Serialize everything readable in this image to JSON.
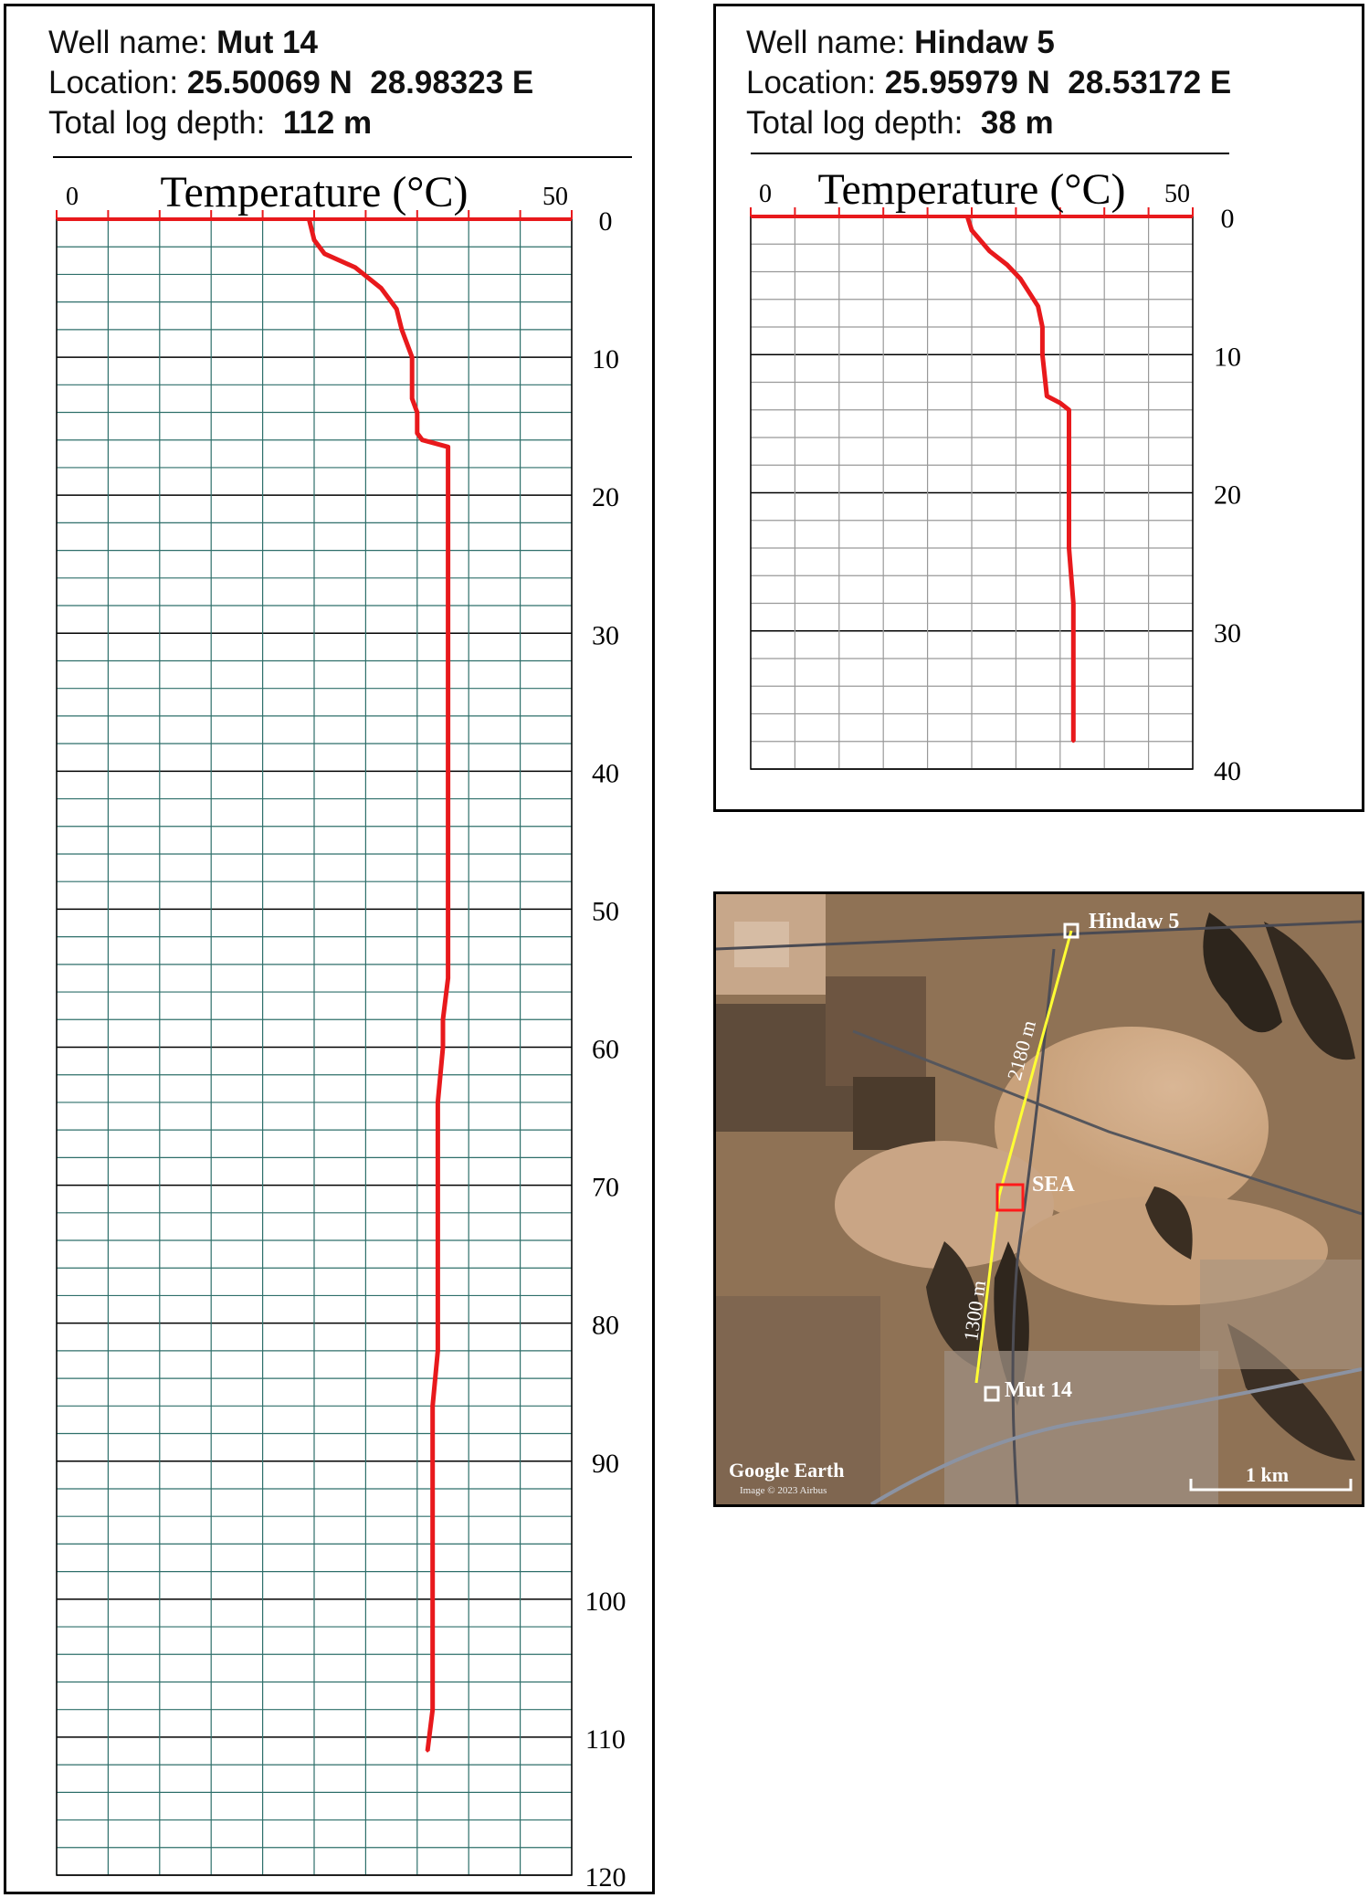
{
  "chart_data": [
    {
      "type": "line",
      "well_label": "Well name:",
      "well_name": "Mut 14",
      "location_label": "Location:",
      "location": "25.50069 N  28.98323 E",
      "depth_label": "Total log depth:",
      "total_depth": "112 m",
      "axis_title": "Temperature (°C)",
      "x_ticks": [
        "0",
        "50"
      ],
      "xlim": [
        0,
        50
      ],
      "y_ticks": [
        "0",
        "10",
        "20",
        "30",
        "40",
        "50",
        "60",
        "70",
        "80",
        "90",
        "100",
        "110",
        "120"
      ],
      "ylim": [
        0,
        120
      ],
      "grid": true,
      "line_color": "#e8191c",
      "grid_color": "#2e6f6a",
      "series": [
        {
          "x": [
            24.5,
            25,
            26,
            29,
            31.5,
            33,
            33.5,
            34.5,
            34.5,
            35,
            35,
            35.5,
            38,
            38,
            38,
            38,
            38,
            38,
            38,
            38,
            38,
            38,
            37.5,
            37.5,
            37.5,
            37,
            37,
            37,
            37,
            36.5,
            36.5,
            36.5,
            36.5,
            36
          ],
          "y": [
            0,
            1.5,
            2.5,
            3.5,
            5,
            6.5,
            8,
            10,
            13,
            14,
            15.5,
            16,
            16.5,
            20,
            30,
            36,
            40,
            45,
            50,
            51,
            52,
            55,
            58,
            59,
            60,
            64,
            70,
            75,
            82,
            86,
            96,
            97,
            108,
            111
          ]
        }
      ]
    },
    {
      "type": "line",
      "well_label": "Well name:",
      "well_name": "Hindaw 5",
      "location_label": "Location:",
      "location": "25.95979 N  28.53172 E",
      "depth_label": "Total log depth:",
      "total_depth": "38 m",
      "axis_title": "Temperature (°C)",
      "x_ticks": [
        "0",
        "50"
      ],
      "xlim": [
        0,
        50
      ],
      "y_ticks": [
        "0",
        "10",
        "20",
        "30",
        "40"
      ],
      "ylim": [
        0,
        40
      ],
      "grid": true,
      "line_color": "#e8191c",
      "grid_color": "#999999",
      "series": [
        {
          "x": [
            24.5,
            25,
            27,
            29,
            30.5,
            31.5,
            32.5,
            33,
            33,
            33.5,
            35,
            36,
            36,
            36,
            36,
            36.5,
            36.5,
            36.5
          ],
          "y": [
            0,
            1,
            2.5,
            3.5,
            4.5,
            5.5,
            6.5,
            8,
            10,
            13,
            13.5,
            14,
            16,
            20,
            24,
            28,
            34,
            38
          ]
        }
      ]
    }
  ],
  "map": {
    "label_hindaw": "Hindaw 5",
    "label_mut": "Mut 14",
    "label_sea": "SEA",
    "distance_upper": "2180 m",
    "distance_lower": "1300 m",
    "scale_label": "1 km",
    "brand": "Google Earth",
    "credit": "Image © 2023 Airbus"
  }
}
